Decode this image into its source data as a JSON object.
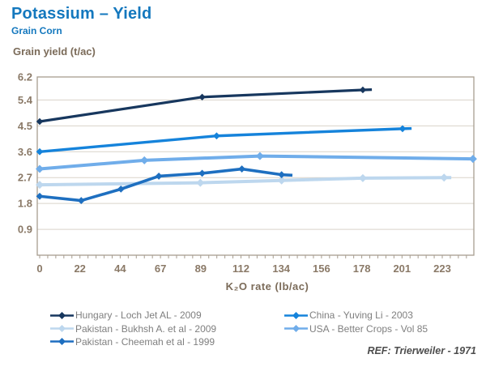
{
  "chart_data": {
    "type": "line",
    "title": "Potassium – Yield",
    "subtitle": "Grain Corn",
    "ylabel": "Grain yield (t/ac)",
    "xlabel": "K₂O rate (lb/ac)",
    "ref": "REF: Trierweiler - 1971",
    "xlim": [
      0,
      240.5
    ],
    "ylim": [
      0,
      6.2
    ],
    "grid": true,
    "x_major_interval": 22.3,
    "x_minor_per_major": 5,
    "x_tick_labels": [
      "0",
      "22",
      "44",
      "67",
      "89",
      "112",
      "134",
      "156",
      "178",
      "201",
      "223"
    ],
    "y_ticks": [
      "0.9",
      "1.8",
      "2.7",
      "3.6",
      "4.5",
      "5.4",
      "6.2"
    ],
    "series": [
      {
        "name": "Pakistan - Bukhsh A. et al - 2009",
        "color": "#BDD7EE",
        "width": 4,
        "marker_size": 5,
        "points": [
          [
            0,
            2.45
          ],
          [
            89,
            2.52
          ],
          [
            134,
            2.6
          ],
          [
            179,
            2.68
          ],
          [
            224,
            2.7
          ]
        ],
        "tail": [
          228,
          2.7
        ]
      },
      {
        "name": "USA - Better Crops - Vol 85",
        "color": "#70ADEA",
        "width": 4,
        "marker_size": 5,
        "points": [
          [
            0,
            3.0
          ],
          [
            58,
            3.3
          ],
          [
            122,
            3.45
          ],
          [
            240,
            3.35
          ]
        ],
        "tail": null
      },
      {
        "name": "China - Yuving Li - 2003",
        "color": "#1583DB",
        "width": 3.4,
        "marker_size": 4.4,
        "points": [
          [
            0,
            3.6
          ],
          [
            98,
            4.15
          ],
          [
            201,
            4.4
          ]
        ],
        "tail": [
          206,
          4.41
        ]
      },
      {
        "name": "Pakistan - Cheemah et al - 1999",
        "color": "#1E6FC0",
        "width": 3.6,
        "marker_size": 4.4,
        "points": [
          [
            0,
            2.05
          ],
          [
            23,
            1.9
          ],
          [
            45,
            2.3
          ],
          [
            66,
            2.75
          ],
          [
            90,
            2.85
          ],
          [
            112,
            3.0
          ],
          [
            134,
            2.8
          ]
        ],
        "tail": [
          140,
          2.78
        ]
      },
      {
        "name": "Hungary - Loch Jet AL - 2009",
        "color": "#17375E",
        "width": 3.2,
        "marker_size": 4.2,
        "points": [
          [
            0,
            4.65
          ],
          [
            90,
            5.5
          ],
          [
            179,
            5.75
          ]
        ],
        "tail": [
          184,
          5.76
        ]
      }
    ],
    "legend": {
      "position": "bottom",
      "columns": [
        [
          4,
          0,
          3
        ],
        [
          2,
          1
        ]
      ]
    }
  },
  "colors": {
    "grid": "#D9D3C9",
    "frame": "#A79D90",
    "tick_text": "#8A7967",
    "legend_text": "#7F7F7F"
  }
}
